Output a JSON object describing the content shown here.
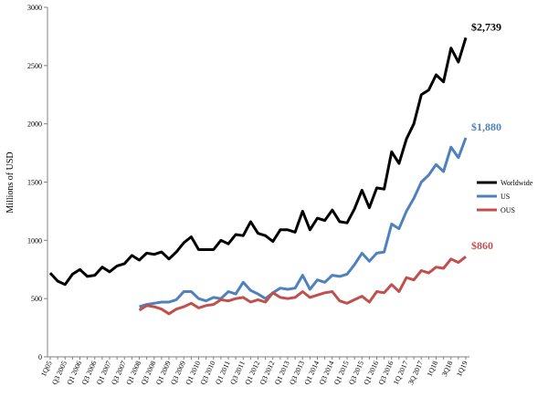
{
  "chart_data": {
    "type": "line",
    "ylabel": "Millions of USD",
    "categories": [
      "1Q05",
      null,
      "Q3 2005",
      null,
      "Q1 2006",
      null,
      "Q3 2006",
      null,
      "Q1 2007",
      null,
      "Q3 2007",
      null,
      "Q1 2008",
      null,
      "Q3 2008",
      null,
      "Q1 2009",
      null,
      "Q3 2009",
      null,
      "Q1 2010",
      null,
      "Q3 2010",
      null,
      "Q1 2011",
      null,
      "Q3 2011",
      null,
      "Q1 2012",
      null,
      "Q3 2012",
      null,
      "Q1 2013",
      null,
      "Q3 2013",
      null,
      "Q1 2014",
      null,
      "Q3 2014",
      null,
      "Q1 2015",
      null,
      "Q3 2015",
      null,
      "Q1 2016",
      null,
      "Q3 2016",
      null,
      "1Q 2017",
      null,
      "3Q 2017",
      null,
      "1Q18",
      null,
      "3Q18",
      null,
      "1Q19"
    ],
    "ylim": [
      0,
      3000
    ],
    "yticks": [
      0,
      500,
      1000,
      1500,
      2000,
      2500,
      3000
    ],
    "legend": "right",
    "series": [
      {
        "name": "Worldwide",
        "color": "#000000",
        "values": [
          720,
          650,
          620,
          710,
          750,
          690,
          700,
          770,
          730,
          780,
          800,
          870,
          830,
          890,
          880,
          900,
          840,
          900,
          980,
          1030,
          920,
          920,
          920,
          1000,
          970,
          1050,
          1040,
          1160,
          1060,
          1040,
          990,
          1090,
          1090,
          1070,
          1250,
          1090,
          1190,
          1170,
          1260,
          1160,
          1150,
          1270,
          1430,
          1280,
          1450,
          1440,
          1760,
          1660,
          1870,
          2000,
          2250,
          2290,
          2420,
          2360,
          2650,
          2530,
          2739
        ],
        "value_labels": [
          null,
          null,
          null,
          null,
          null,
          null,
          null,
          null,
          null,
          null,
          null,
          null,
          null,
          null,
          null,
          null,
          null,
          null,
          null,
          null,
          null,
          null,
          null,
          null,
          null,
          null,
          null,
          null,
          null,
          null,
          null,
          null,
          null,
          null,
          null,
          null,
          null,
          null,
          null,
          null,
          null,
          null,
          null,
          null,
          null,
          null,
          null,
          null,
          null,
          null,
          null,
          null,
          null,
          null,
          null,
          null,
          "$2,739"
        ]
      },
      {
        "name": "US",
        "color": "#4f81bd",
        "values": [
          null,
          null,
          null,
          null,
          null,
          null,
          null,
          null,
          null,
          null,
          null,
          null,
          430,
          450,
          460,
          470,
          470,
          490,
          560,
          560,
          500,
          480,
          510,
          500,
          560,
          540,
          640,
          570,
          540,
          500,
          550,
          590,
          580,
          590,
          700,
          580,
          660,
          640,
          700,
          690,
          710,
          790,
          890,
          820,
          890,
          900,
          1140,
          1100,
          1250,
          1360,
          1500,
          1560,
          1650,
          1590,
          1800,
          1710,
          1880
        ],
        "value_labels": [
          null,
          null,
          null,
          null,
          null,
          null,
          null,
          null,
          null,
          null,
          null,
          null,
          null,
          null,
          null,
          null,
          null,
          null,
          null,
          null,
          null,
          null,
          null,
          null,
          null,
          null,
          null,
          null,
          null,
          null,
          null,
          null,
          null,
          null,
          null,
          null,
          null,
          null,
          null,
          null,
          null,
          null,
          null,
          null,
          null,
          null,
          null,
          null,
          null,
          null,
          null,
          null,
          null,
          null,
          null,
          null,
          "$1,880"
        ]
      },
      {
        "name": "OUS",
        "color": "#c0504d",
        "values": [
          null,
          null,
          null,
          null,
          null,
          null,
          null,
          null,
          null,
          null,
          null,
          null,
          400,
          440,
          430,
          410,
          370,
          410,
          430,
          460,
          420,
          440,
          450,
          490,
          480,
          500,
          510,
          470,
          490,
          470,
          550,
          510,
          500,
          510,
          560,
          510,
          530,
          550,
          560,
          480,
          460,
          490,
          520,
          470,
          560,
          550,
          620,
          560,
          680,
          660,
          740,
          720,
          770,
          760,
          840,
          810,
          860
        ],
        "value_labels": [
          null,
          null,
          null,
          null,
          null,
          null,
          null,
          null,
          null,
          null,
          null,
          null,
          null,
          null,
          null,
          null,
          null,
          null,
          null,
          null,
          null,
          null,
          null,
          null,
          null,
          null,
          null,
          null,
          null,
          null,
          null,
          null,
          null,
          null,
          null,
          null,
          null,
          null,
          null,
          null,
          null,
          null,
          null,
          null,
          null,
          null,
          null,
          null,
          null,
          null,
          null,
          null,
          null,
          null,
          null,
          null,
          "$860"
        ]
      }
    ]
  }
}
